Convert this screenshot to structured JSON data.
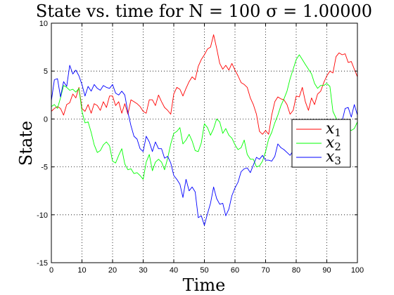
{
  "chart_data": {
    "type": "line",
    "title": "State vs. time for N = 100 σ = 1.00000",
    "xlabel": "Time",
    "ylabel": "State",
    "xlim": [
      0,
      100
    ],
    "ylim": [
      -15,
      10
    ],
    "xticks": [
      0,
      10,
      20,
      30,
      40,
      50,
      60,
      70,
      80,
      90,
      100
    ],
    "yticks": [
      -15,
      -10,
      -5,
      0,
      5,
      10
    ],
    "grid": true,
    "legend_position": "right",
    "series": [
      {
        "name": "x",
        "subscript": "1",
        "color": "#ff0000",
        "x": [
          0,
          1,
          2,
          3,
          4,
          5,
          6,
          7,
          8,
          9,
          10,
          11,
          12,
          13,
          14,
          15,
          16,
          17,
          18,
          19,
          20,
          21,
          22,
          23,
          24,
          25,
          26,
          27,
          28,
          29,
          30,
          31,
          32,
          33,
          34,
          35,
          36,
          37,
          38,
          39,
          40,
          41,
          42,
          43,
          44,
          45,
          46,
          47,
          48,
          49,
          50,
          51,
          52,
          53,
          54,
          55,
          56,
          57,
          58,
          59,
          60,
          61,
          62,
          63,
          64,
          65,
          66,
          67,
          68,
          69,
          70,
          71,
          72,
          73,
          74,
          75,
          76,
          77,
          78,
          79,
          80,
          81,
          82,
          83,
          84,
          85,
          86,
          87,
          88,
          89,
          90,
          91,
          92,
          93,
          94,
          95,
          96,
          97,
          98,
          99,
          100
        ],
        "y": [
          0.8,
          1.1,
          1.3,
          1.1,
          0.4,
          1.5,
          1.7,
          2.6,
          2.2,
          3.3,
          1.1,
          0.8,
          1.5,
          0.6,
          1.6,
          1.4,
          0.9,
          1.8,
          1.2,
          2.4,
          2.4,
          1.4,
          1.8,
          0.6,
          1.6,
          0.5,
          2.0,
          1.8,
          1.6,
          1.3,
          0.8,
          0.6,
          2.0,
          2.0,
          1.4,
          2.5,
          1.8,
          1.2,
          0.9,
          0.5,
          2.6,
          3.3,
          3.1,
          2.4,
          3.2,
          3.9,
          4.4,
          4.1,
          5.5,
          6.2,
          6.7,
          7.3,
          7.5,
          8.8,
          7.4,
          5.8,
          5.2,
          5.6,
          5.1,
          5.8,
          5.1,
          4.5,
          3.8,
          3.6,
          3.3,
          2.2,
          1.5,
          0.5,
          -1.3,
          -1.6,
          -1.2,
          -1.6,
          0.4,
          1.8,
          2.3,
          2.1,
          2.0,
          1.5,
          0.5,
          0.9,
          2.4,
          2.3,
          3.3,
          1.8,
          0.9,
          2.2,
          1.5,
          2.6,
          2.9,
          3.8,
          4.5,
          5.0,
          4.8,
          6.5,
          6.9,
          6.7,
          6.8,
          5.9,
          6.0,
          5.2,
          4.4
        ]
      },
      {
        "name": "x",
        "subscript": "2",
        "color": "#00ff00",
        "x": [
          0,
          1,
          2,
          3,
          4,
          5,
          6,
          7,
          8,
          9,
          10,
          11,
          12,
          13,
          14,
          15,
          16,
          17,
          18,
          19,
          20,
          21,
          22,
          23,
          24,
          25,
          26,
          27,
          28,
          29,
          30,
          31,
          32,
          33,
          34,
          35,
          36,
          37,
          38,
          39,
          40,
          41,
          42,
          43,
          44,
          45,
          46,
          47,
          48,
          49,
          50,
          51,
          52,
          53,
          54,
          55,
          56,
          57,
          58,
          59,
          60,
          61,
          62,
          63,
          64,
          65,
          66,
          67,
          68,
          69,
          70,
          71,
          72,
          73,
          74,
          75,
          76,
          77,
          78,
          79,
          80,
          81,
          82,
          83,
          84,
          85,
          86,
          87,
          88,
          89,
          90,
          91,
          92,
          93,
          94,
          95,
          96,
          97,
          98,
          99,
          100
        ],
        "y": [
          1.3,
          1.5,
          1.1,
          2.2,
          3.5,
          3.3,
          3.0,
          3.1,
          2.8,
          3.2,
          0.8,
          -0.4,
          -0.3,
          -1.4,
          -2.7,
          -3.5,
          -3.3,
          -2.7,
          -2.4,
          -2.8,
          -4.4,
          -4.6,
          -3.8,
          -3.1,
          -4.7,
          -5.3,
          -5.2,
          -5.7,
          -5.6,
          -5.9,
          -6.3,
          -4.5,
          -3.7,
          -5.4,
          -4.5,
          -4.2,
          -4.5,
          -5.3,
          -4.1,
          -2.6,
          -1.5,
          -1.3,
          -0.9,
          -2.6,
          -2.2,
          -1.6,
          -2.3,
          -3.3,
          -3.4,
          -2.5,
          -0.5,
          -0.9,
          -1.7,
          -1.0,
          0.0,
          -0.3,
          -1.5,
          -1.0,
          -1.7,
          -2.0,
          -2.7,
          -3.2,
          -3.0,
          -2.2,
          -3.7,
          -4.2,
          -4.2,
          -5.0,
          -4.9,
          -4.4,
          -3.4,
          -2.1,
          -1.4,
          -0.4,
          0.4,
          1.4,
          2.1,
          2.9,
          4.2,
          5.2,
          6.2,
          6.7,
          6.2,
          5.7,
          5.2,
          4.7,
          3.7,
          3.2,
          3.5,
          3.5,
          3.7,
          3.4,
          0.8,
          0.1,
          -0.6,
          -0.9,
          -0.8,
          -1.0,
          -1.2,
          -1.0,
          -0.3
        ]
      },
      {
        "name": "x",
        "subscript": "3",
        "color": "#0000ff",
        "x": [
          0,
          1,
          2,
          3,
          4,
          5,
          6,
          7,
          8,
          9,
          10,
          11,
          12,
          13,
          14,
          15,
          16,
          17,
          18,
          19,
          20,
          21,
          22,
          23,
          24,
          25,
          26,
          27,
          28,
          29,
          30,
          31,
          32,
          33,
          34,
          35,
          36,
          37,
          38,
          39,
          40,
          41,
          42,
          43,
          44,
          45,
          46,
          47,
          48,
          49,
          50,
          51,
          52,
          53,
          54,
          55,
          56,
          57,
          58,
          59,
          60,
          61,
          62,
          63,
          64,
          65,
          66,
          67,
          68,
          69,
          70,
          71,
          72,
          73,
          74,
          75,
          76,
          77,
          78,
          79,
          80,
          81,
          82,
          83,
          84,
          85,
          86,
          87,
          88,
          89,
          90,
          91,
          92,
          93,
          94,
          95,
          96,
          97,
          98,
          99,
          100
        ],
        "y": [
          1.9,
          4.1,
          4.2,
          2.3,
          3.9,
          3.4,
          5.6,
          4.7,
          5.1,
          4.5,
          3.6,
          2.4,
          3.4,
          2.9,
          3.6,
          3.2,
          3.0,
          3.5,
          3.3,
          3.2,
          3.6,
          2.7,
          2.5,
          2.9,
          2.5,
          0.7,
          -0.7,
          -1.8,
          -2.1,
          -3.1,
          -3.4,
          -1.8,
          -2.4,
          -3.4,
          -2.4,
          -3.1,
          -3.1,
          -4.1,
          -3.9,
          -4.6,
          -5.9,
          -6.3,
          -6.8,
          -8.2,
          -6.3,
          -7.5,
          -7.1,
          -7.6,
          -10.3,
          -10.1,
          -11.1,
          -9.9,
          -8.8,
          -7.1,
          -8.3,
          -8.9,
          -8.8,
          -10.1,
          -9.4,
          -8.0,
          -7.2,
          -6.6,
          -5.5,
          -5.2,
          -5.1,
          -5.6,
          -4.8,
          -4.0,
          -4.2,
          -3.8,
          -4.3,
          -4.3,
          -4.4,
          -3.9,
          -2.6,
          -3.0,
          -3.2,
          -3.5,
          -3.8,
          -3.3,
          -3.4,
          -2.9,
          -2.3,
          -2.6,
          -2.0,
          -1.8,
          -1.4,
          -1.0,
          -0.7,
          -0.5,
          -0.4,
          -0.3,
          -0.8,
          -0.7,
          -0.4,
          -0.2,
          1.1,
          1.2,
          0.2,
          1.5,
          0.4
        ]
      }
    ]
  }
}
